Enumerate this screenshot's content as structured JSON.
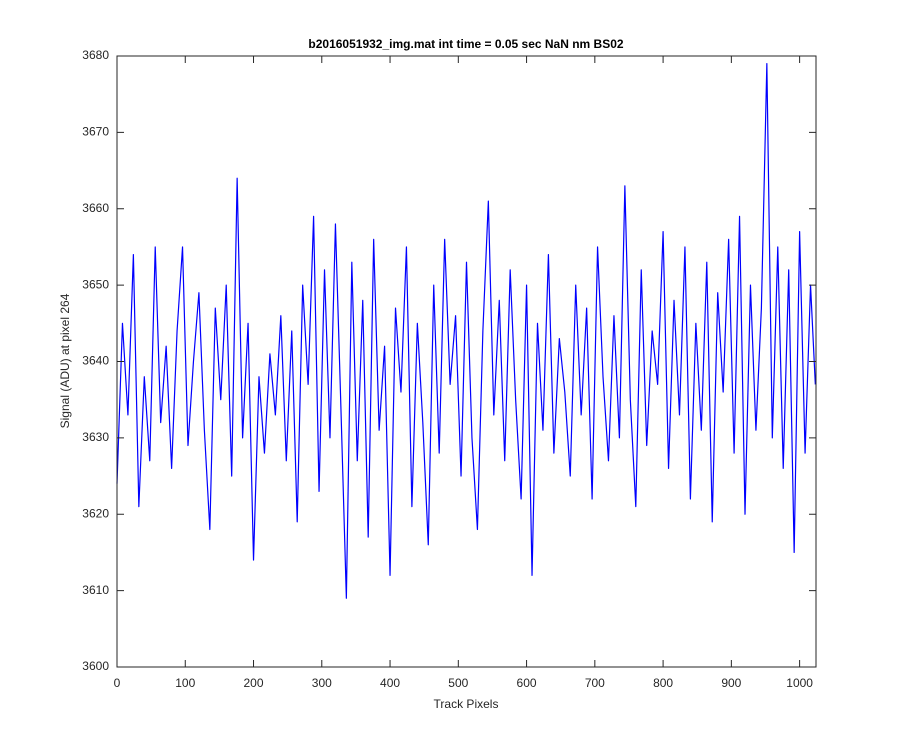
{
  "chart_data": {
    "type": "line",
    "title": "b2016051932_img.mat int time = 0.05 sec  NaN nm BS02",
    "x_label": "Track Pixels",
    "y_label": "Signal (ADU) at pixel 264",
    "x": [
      0,
      8,
      16,
      24,
      32,
      40,
      48,
      56,
      64,
      72,
      80,
      88,
      96,
      104,
      112,
      120,
      128,
      136,
      144,
      152,
      160,
      168,
      176,
      184,
      192,
      200,
      208,
      216,
      224,
      232,
      240,
      248,
      256,
      264,
      272,
      280,
      288,
      296,
      304,
      312,
      320,
      328,
      336,
      344,
      352,
      360,
      368,
      376,
      384,
      392,
      400,
      408,
      416,
      424,
      432,
      440,
      448,
      456,
      464,
      472,
      480,
      488,
      496,
      504,
      512,
      520,
      528,
      536,
      544,
      552,
      560,
      568,
      576,
      584,
      592,
      600,
      608,
      616,
      624,
      632,
      640,
      648,
      656,
      664,
      672,
      680,
      688,
      696,
      704,
      712,
      720,
      728,
      736,
      744,
      752,
      760,
      768,
      776,
      784,
      792,
      800,
      808,
      816,
      824,
      832,
      840,
      848,
      856,
      864,
      872,
      880,
      888,
      896,
      904,
      912,
      920,
      928,
      936,
      944,
      952,
      960,
      968,
      976,
      984,
      992,
      1000,
      1008,
      1016,
      1023
    ],
    "series": [
      {
        "name": "signal",
        "color": "#0000ff",
        "values": [
          3624,
          3645,
          3633,
          3654,
          3621,
          3638,
          3627,
          3655,
          3632,
          3642,
          3626,
          3644,
          3655,
          3629,
          3640,
          3649,
          3631,
          3618,
          3647,
          3635,
          3650,
          3625,
          3664,
          3630,
          3645,
          3614,
          3638,
          3628,
          3641,
          3633,
          3646,
          3627,
          3644,
          3619,
          3650,
          3637,
          3659,
          3623,
          3652,
          3630,
          3658,
          3634,
          3609,
          3653,
          3627,
          3648,
          3617,
          3656,
          3631,
          3642,
          3612,
          3647,
          3636,
          3655,
          3621,
          3645,
          3632,
          3616,
          3650,
          3628,
          3656,
          3637,
          3646,
          3625,
          3653,
          3630,
          3618,
          3644,
          3661,
          3633,
          3648,
          3627,
          3652,
          3635,
          3622,
          3650,
          3612,
          3645,
          3631,
          3654,
          3628,
          3643,
          3636,
          3625,
          3650,
          3633,
          3647,
          3622,
          3655,
          3638,
          3627,
          3646,
          3630,
          3663,
          3635,
          3621,
          3652,
          3629,
          3644,
          3637,
          3657,
          3626,
          3648,
          3633,
          3655,
          3622,
          3645,
          3631,
          3653,
          3619,
          3649,
          3636,
          3656,
          3628,
          3659,
          3620,
          3650,
          3631,
          3647,
          3679,
          3630,
          3655,
          3626,
          3652,
          3615,
          3657,
          3628,
          3650,
          3637
        ]
      }
    ],
    "xlim": [
      0,
      1024
    ],
    "ylim": [
      3600,
      3680
    ],
    "xticks": [
      0,
      100,
      200,
      300,
      400,
      500,
      600,
      700,
      800,
      900,
      1000
    ],
    "yticks": [
      3600,
      3610,
      3620,
      3630,
      3640,
      3650,
      3660,
      3670,
      3680
    ]
  }
}
